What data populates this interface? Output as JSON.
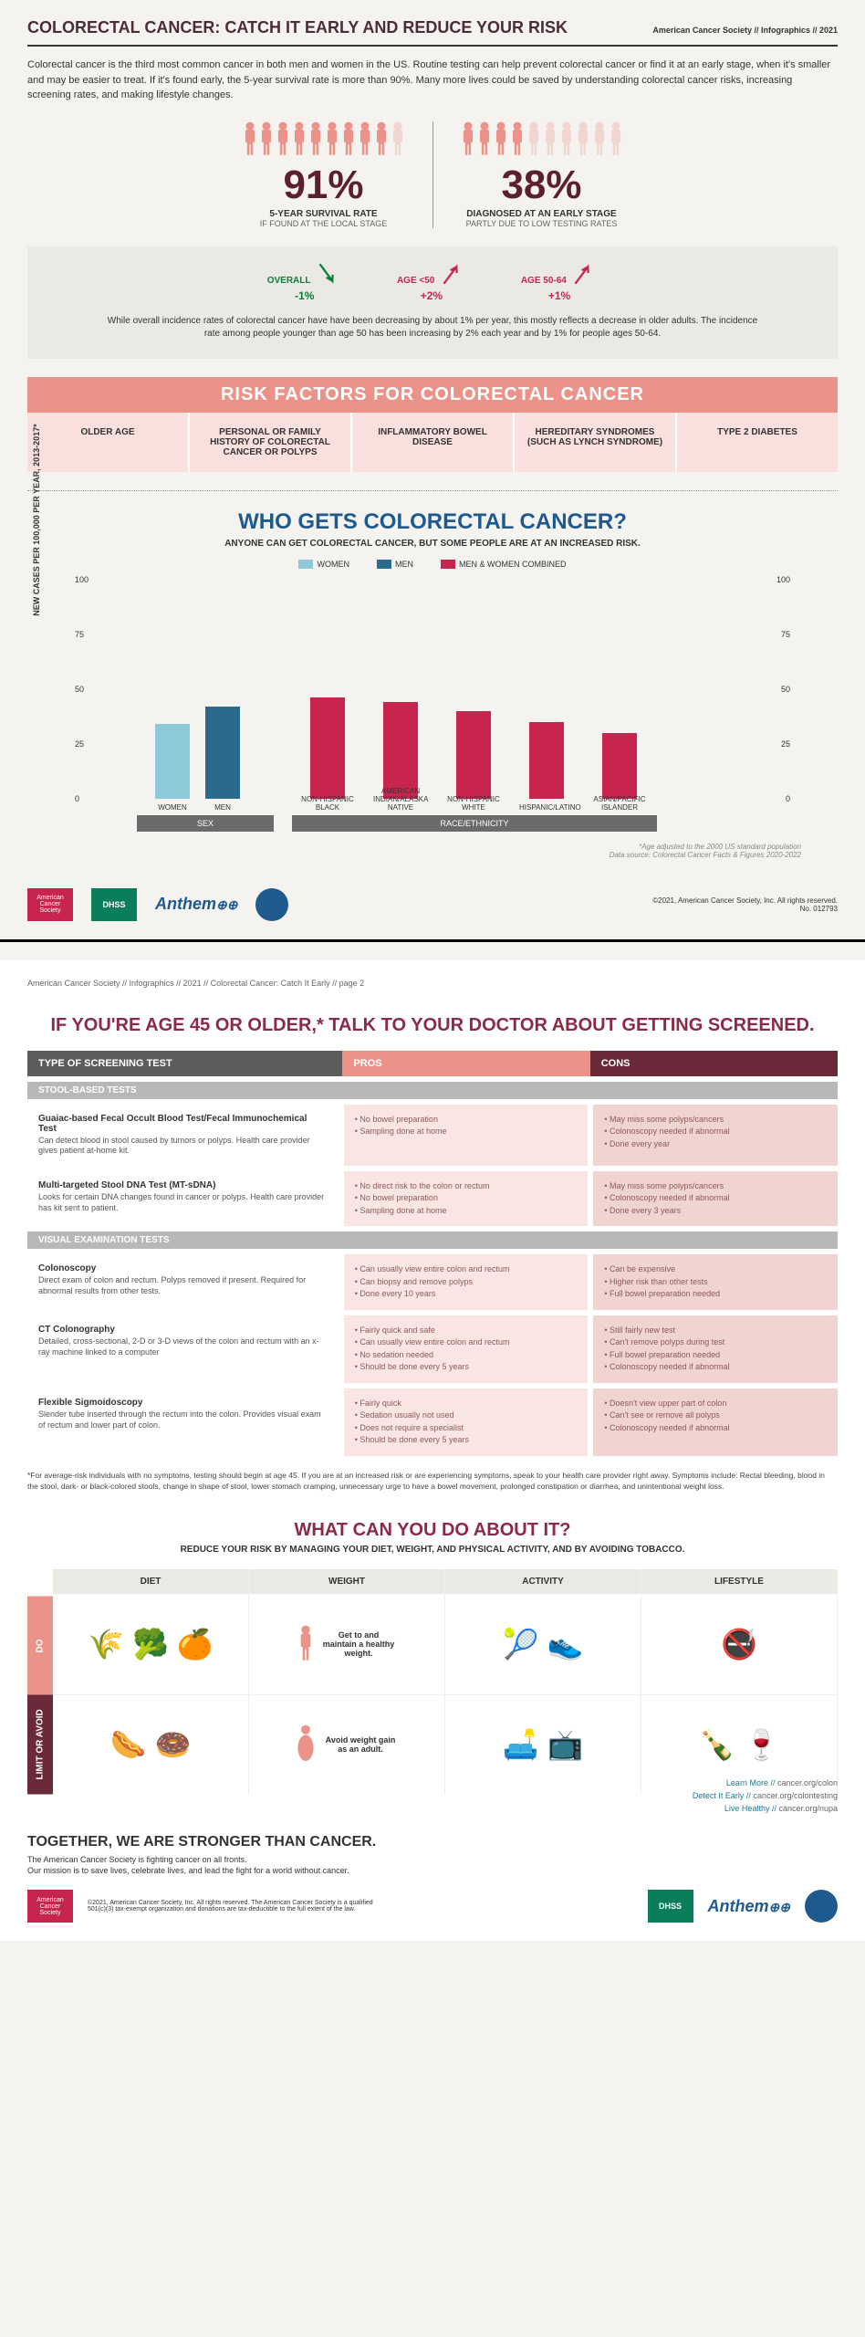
{
  "header": {
    "title": "COLORECTAL CANCER: CATCH IT EARLY AND REDUCE YOUR RISK",
    "right": "American Cancer Society // Infographics // 2021"
  },
  "intro": "Colorectal cancer is the third most common cancer in both men and women in the US. Routine testing can help prevent colorectal cancer or find it at an early stage, when it's smaller and may be easier to treat. If it's found early, the 5-year survival rate is more than 90%. Many more lives could be saved by understanding colorectal cancer risks, increasing screening rates, and making lifestyle changes.",
  "survival": {
    "pct": "91%",
    "label": "5-YEAR SURVIVAL RATE",
    "sub": "IF FOUND AT THE LOCAL STAGE"
  },
  "diagnosed": {
    "pct": "38%",
    "label": "DIAGNOSED AT AN EARLY STAGE",
    "sub": "PARTLY DUE TO LOW TESTING RATES"
  },
  "trends": {
    "overall": {
      "label": "OVERALL",
      "val": "-1%"
    },
    "age50": {
      "label": "AGE <50",
      "val": "+2%"
    },
    "age5064": {
      "label": "AGE 50-64",
      "val": "+1%"
    },
    "text": "While overall incidence rates of colorectal cancer have have been decreasing by about 1% per year, this mostly reflects a decrease in older adults. The incidence rate among people younger than age 50 has been increasing by 2% each year and by 1% for people ages 50-64."
  },
  "risk": {
    "banner": "RISK FACTORS FOR COLORECTAL CANCER",
    "items": [
      "OLDER AGE",
      "PERSONAL OR FAMILY HISTORY OF COLORECTAL CANCER OR POLYPS",
      "INFLAMMATORY BOWEL DISEASE",
      "HEREDITARY SYNDROMES (SUCH AS LYNCH SYNDROME)",
      "TYPE 2 DIABETES"
    ]
  },
  "who": {
    "title": "WHO GETS COLORECTAL CANCER?",
    "sub": "ANYONE CAN GET COLORECTAL CANCER, BUT SOME PEOPLE ARE AT AN INCREASED RISK."
  },
  "legend": {
    "women": "WOMEN",
    "men": "MEN",
    "combined": "MEN & WOMEN COMBINED"
  },
  "chart": {
    "ylabel": "NEW CASES PER 100,000 PER YEAR, 2013-2017*",
    "ymax": 100,
    "yticks": [
      0,
      25,
      50,
      75,
      100
    ],
    "colors": {
      "women": "#8dc9d9",
      "men": "#2a6a8a",
      "combined": "#c7254e"
    },
    "sex_bars": [
      {
        "label": "WOMEN",
        "val": 34,
        "color": "#8dc9d9"
      },
      {
        "label": "MEN",
        "val": 42,
        "color": "#2a6a8a"
      }
    ],
    "race_bars": [
      {
        "label": "NON-HISPANIC BLACK",
        "val": 46
      },
      {
        "label": "AMERICAN INDIAN/ALASKA NATIVE",
        "val": 44
      },
      {
        "label": "NON-HISPANIC WHITE",
        "val": 40
      },
      {
        "label": "HISPANIC/LATINO",
        "val": 35
      },
      {
        "label": "ASIAN/PACIFIC ISLANDER",
        "val": 30
      }
    ],
    "cat1": "SEX",
    "cat2": "RACE/ETHNICITY",
    "note": "*Age adjusted to the 2000 US standard population\nData source: Colorectal Cancer Facts & Figures 2020-2022"
  },
  "copyright1": "©2021, American Cancer Society, Inc. All rights reserved.\nNo. 012793",
  "page2head": "American Cancer Society // Infographics // 2021 // Colorectal Cancer: Catch It Early // page 2",
  "screen": {
    "title": "IF YOU'RE AGE 45 OR OLDER,* TALK TO YOUR DOCTOR ABOUT GETTING SCREENED.",
    "headers": [
      "TYPE OF SCREENING TEST",
      "PROS",
      "CONS"
    ],
    "cat1": "STOOL-BASED TESTS",
    "cat2": "VISUAL EXAMINATION TESTS",
    "tests": [
      {
        "cat": 1,
        "name": "Guaiac-based Fecal Occult Blood Test/Fecal Immunochemical Test",
        "desc": "Can detect blood in stool caused by tumors or polyps. Health care provider gives patient at-home kit.",
        "pros": [
          "No bowel preparation",
          "Sampling done at home"
        ],
        "cons": [
          "May miss some polyps/cancers",
          "Colonoscopy needed if abnormal",
          "Done every year"
        ]
      },
      {
        "cat": 1,
        "name": "Multi-targeted Stool DNA Test (MT-sDNA)",
        "desc": "Looks for certain DNA changes found in cancer or polyps. Health care provider has kit sent to patient.",
        "pros": [
          "No direct risk to the colon or rectum",
          "No bowel preparation",
          "Sampling done at home"
        ],
        "cons": [
          "May miss some polyps/cancers",
          "Colonoscopy needed if abnormal",
          "Done every 3 years"
        ]
      },
      {
        "cat": 2,
        "name": "Colonoscopy",
        "desc": "Direct exam of colon and rectum. Polyps removed if present. Required for abnormal results from other tests.",
        "pros": [
          "Can usually view entire colon and rectum",
          "Can biopsy and remove polyps",
          "Done every 10 years"
        ],
        "cons": [
          "Can be expensive",
          "Higher risk than other tests",
          "Full bowel preparation needed"
        ]
      },
      {
        "cat": 2,
        "name": "CT Colonography",
        "desc": "Detailed, cross-sectional, 2-D or 3-D views of the colon and rectum with an x-ray machine linked to a computer",
        "pros": [
          "Fairly quick and safe",
          "Can usually view entire colon and rectum",
          "No sedation needed",
          "Should be done every 5 years"
        ],
        "cons": [
          "Still fairly new test",
          "Can't remove polyps during test",
          "Full bowel preparation needed",
          "Colonoscopy needed if abnormal"
        ]
      },
      {
        "cat": 2,
        "name": "Flexible Sigmoidoscopy",
        "desc": "Slender tube inserted through the rectum into the colon. Provides visual exam of rectum and lower part of colon.",
        "pros": [
          "Fairly quick",
          "Sedation usually not used",
          "Does not require a specialist",
          "Should be done every 5 years"
        ],
        "cons": [
          "Doesn't view upper part of colon",
          "Can't see or remove all polyps",
          "Colonoscopy needed if abnormal"
        ]
      }
    ],
    "note": "*For average-risk individuals with no symptoms, testing should begin at age 45. If you are at an increased risk or are experiencing symptoms, speak to your health care provider right away. Symptoms include: Rectal bleeding, blood in the stool, dark- or black-colored stools, change in shape of stool, lower stomach cramping, unnecessary urge to have a bowel movement, prolonged constipation or diarrhea, and unintentional weight loss."
  },
  "what": {
    "title": "WHAT CAN YOU DO ABOUT IT?",
    "sub": "REDUCE YOUR RISK BY MANAGING YOUR DIET, WEIGHT, AND PHYSICAL ACTIVITY, AND BY AVOIDING TOBACCO.",
    "cols": [
      "DIET",
      "WEIGHT",
      "ACTIVITY",
      "LIFESTYLE"
    ],
    "do": "DO",
    "avoid": "LIMIT OR AVOID",
    "weight_do": "Get to and maintain a healthy weight.",
    "weight_avoid": "Avoid weight gain as an adult."
  },
  "footer": {
    "title": "TOGETHER, WE ARE STRONGER THAN CANCER.",
    "text": "The American Cancer Society is fighting cancer on all fronts.\nOur mission is to save lives, celebrate lives, and lead the fight for a world without cancer.",
    "links": [
      {
        "label": "Learn More // ",
        "url": "cancer.org/colon"
      },
      {
        "label": "Detect It Early // ",
        "url": "cancer.org/colontesting"
      },
      {
        "label": "Live Healthy // ",
        "url": "cancer.org/nupa"
      }
    ],
    "copyright": "©2021, American Cancer Society, Inc. All rights reserved. The American Cancer Society is a qualified 501(c)(3) tax-exempt organization and donations are tax-deductible to the full extent of the law."
  },
  "logos": {
    "acs": "American Cancer Society",
    "dhss": "DHSS",
    "anthem": "Anthem"
  }
}
